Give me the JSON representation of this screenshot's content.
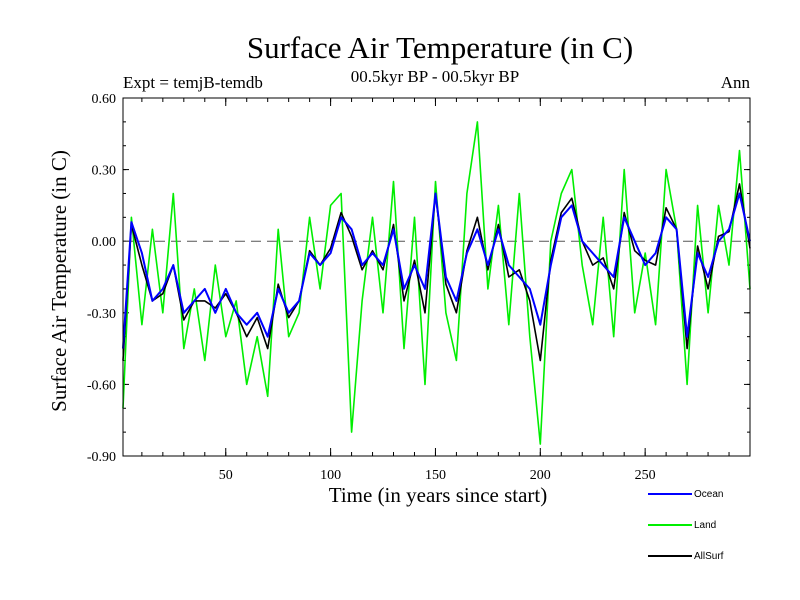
{
  "chart_data": {
    "type": "line",
    "title": "Surface Air Temperature (in C)",
    "subtitle_left": "Expt = temjB-temdb",
    "subtitle_center": "00.5kyr BP - 00.5kyr BP",
    "subtitle_right": "Ann",
    "xlabel": "Time (in years since start)",
    "ylabel": "Surface Air Temperature (in C)",
    "xlim": [
      1,
      300
    ],
    "ylim": [
      -0.9,
      0.6
    ],
    "xticks": [
      50,
      100,
      150,
      200,
      250
    ],
    "xtick_labels": [
      "50",
      "100",
      "150",
      "200",
      "250"
    ],
    "yticks": [
      0.6,
      0.3,
      0.0,
      -0.3,
      -0.6,
      -0.9
    ],
    "ytick_labels": [
      "0.60",
      "0.30",
      "0.00",
      "-0.30",
      "-0.60",
      "-0.90"
    ],
    "zero_line": "dashed",
    "legend_position": "bottom-right outside",
    "x": [
      1,
      5,
      10,
      15,
      20,
      25,
      30,
      35,
      40,
      45,
      50,
      55,
      60,
      65,
      70,
      75,
      80,
      85,
      90,
      95,
      100,
      105,
      110,
      115,
      120,
      125,
      130,
      135,
      140,
      145,
      150,
      155,
      160,
      165,
      170,
      175,
      180,
      185,
      190,
      195,
      200,
      205,
      210,
      215,
      220,
      225,
      230,
      235,
      240,
      245,
      250,
      255,
      260,
      265,
      270,
      275,
      280,
      285,
      290,
      295,
      300
    ],
    "series": [
      {
        "name": "Ocean",
        "color": "#0000ff",
        "values": [
          -0.45,
          0.08,
          -0.05,
          -0.25,
          -0.2,
          -0.1,
          -0.3,
          -0.25,
          -0.2,
          -0.3,
          -0.2,
          -0.3,
          -0.35,
          -0.3,
          -0.4,
          -0.2,
          -0.3,
          -0.25,
          -0.05,
          -0.1,
          -0.05,
          0.1,
          0.05,
          -0.1,
          -0.05,
          -0.1,
          0.05,
          -0.2,
          -0.1,
          -0.2,
          0.2,
          -0.15,
          -0.25,
          -0.05,
          0.05,
          -0.1,
          0.05,
          -0.1,
          -0.15,
          -0.2,
          -0.35,
          -0.1,
          0.1,
          0.15,
          0.0,
          -0.05,
          -0.1,
          -0.15,
          0.1,
          0.0,
          -0.1,
          -0.05,
          0.1,
          0.05,
          -0.4,
          -0.05,
          -0.15,
          0.0,
          0.05,
          0.2,
          0.0
        ]
      },
      {
        "name": "Land",
        "color": "#00ee00",
        "values": [
          -0.7,
          0.1,
          -0.35,
          0.05,
          -0.3,
          0.2,
          -0.45,
          -0.2,
          -0.5,
          -0.1,
          -0.4,
          -0.25,
          -0.6,
          -0.4,
          -0.65,
          0.05,
          -0.4,
          -0.3,
          0.1,
          -0.2,
          0.15,
          0.2,
          -0.8,
          -0.25,
          0.1,
          -0.3,
          0.25,
          -0.45,
          0.1,
          -0.6,
          0.25,
          -0.3,
          -0.5,
          0.2,
          0.5,
          -0.2,
          0.15,
          -0.35,
          0.2,
          -0.4,
          -0.85,
          0.0,
          0.2,
          0.3,
          -0.1,
          -0.35,
          0.1,
          -0.4,
          0.3,
          -0.3,
          -0.05,
          -0.35,
          0.3,
          0.05,
          -0.6,
          0.15,
          -0.3,
          0.15,
          -0.1,
          0.38,
          -0.2
        ]
      },
      {
        "name": "AllSurf",
        "color": "#000000",
        "values": [
          -0.5,
          0.07,
          -0.1,
          -0.25,
          -0.22,
          -0.1,
          -0.33,
          -0.25,
          -0.25,
          -0.28,
          -0.22,
          -0.3,
          -0.4,
          -0.32,
          -0.45,
          -0.18,
          -0.32,
          -0.25,
          -0.04,
          -0.1,
          -0.03,
          0.12,
          0.02,
          -0.12,
          -0.04,
          -0.12,
          0.07,
          -0.25,
          -0.08,
          -0.3,
          0.2,
          -0.18,
          -0.3,
          -0.04,
          0.1,
          -0.12,
          0.07,
          -0.15,
          -0.12,
          -0.25,
          -0.5,
          -0.08,
          0.12,
          0.18,
          0.0,
          -0.1,
          -0.07,
          -0.2,
          0.12,
          -0.04,
          -0.08,
          -0.1,
          0.14,
          0.05,
          -0.45,
          -0.02,
          -0.2,
          0.02,
          0.04,
          0.24,
          -0.03
        ]
      }
    ]
  }
}
